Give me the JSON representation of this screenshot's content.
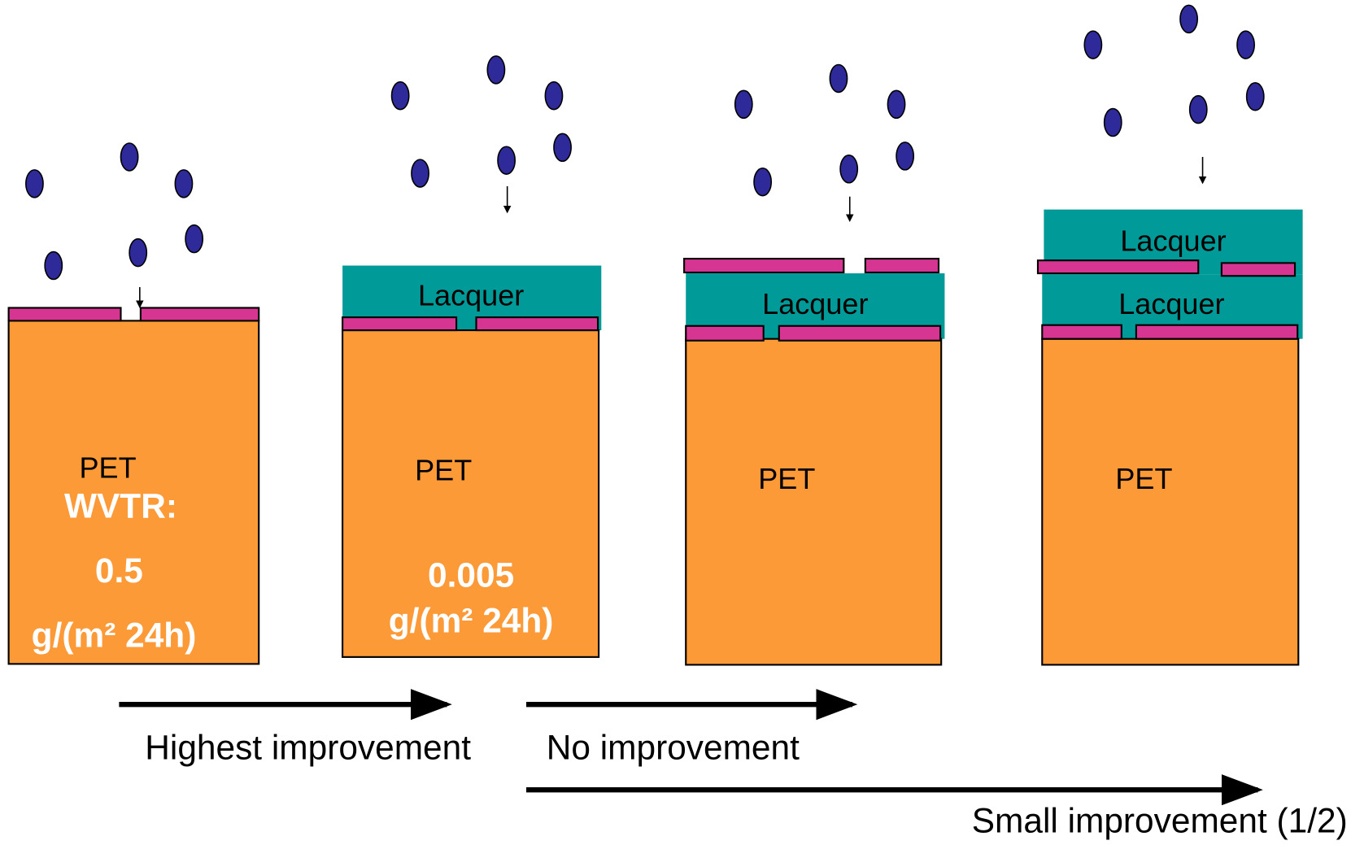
{
  "panels": [
    {
      "substrate": "PET",
      "wvtr_label": "WVTR:",
      "wvtr_value": "0.5",
      "wvtr_unit": "g/(m² 24h)"
    },
    {
      "substrate": "PET",
      "coating": "Lacquer",
      "wvtr_value": "0.005",
      "wvtr_unit": "g/(m² 24h)"
    },
    {
      "substrate": "PET",
      "coating": "Lacquer"
    },
    {
      "substrate": "PET",
      "coatings": [
        "Lacquer",
        "Lacquer"
      ]
    }
  ],
  "arrows": [
    "Highest improvement",
    "No improvement",
    "Small improvement (1/2)"
  ]
}
